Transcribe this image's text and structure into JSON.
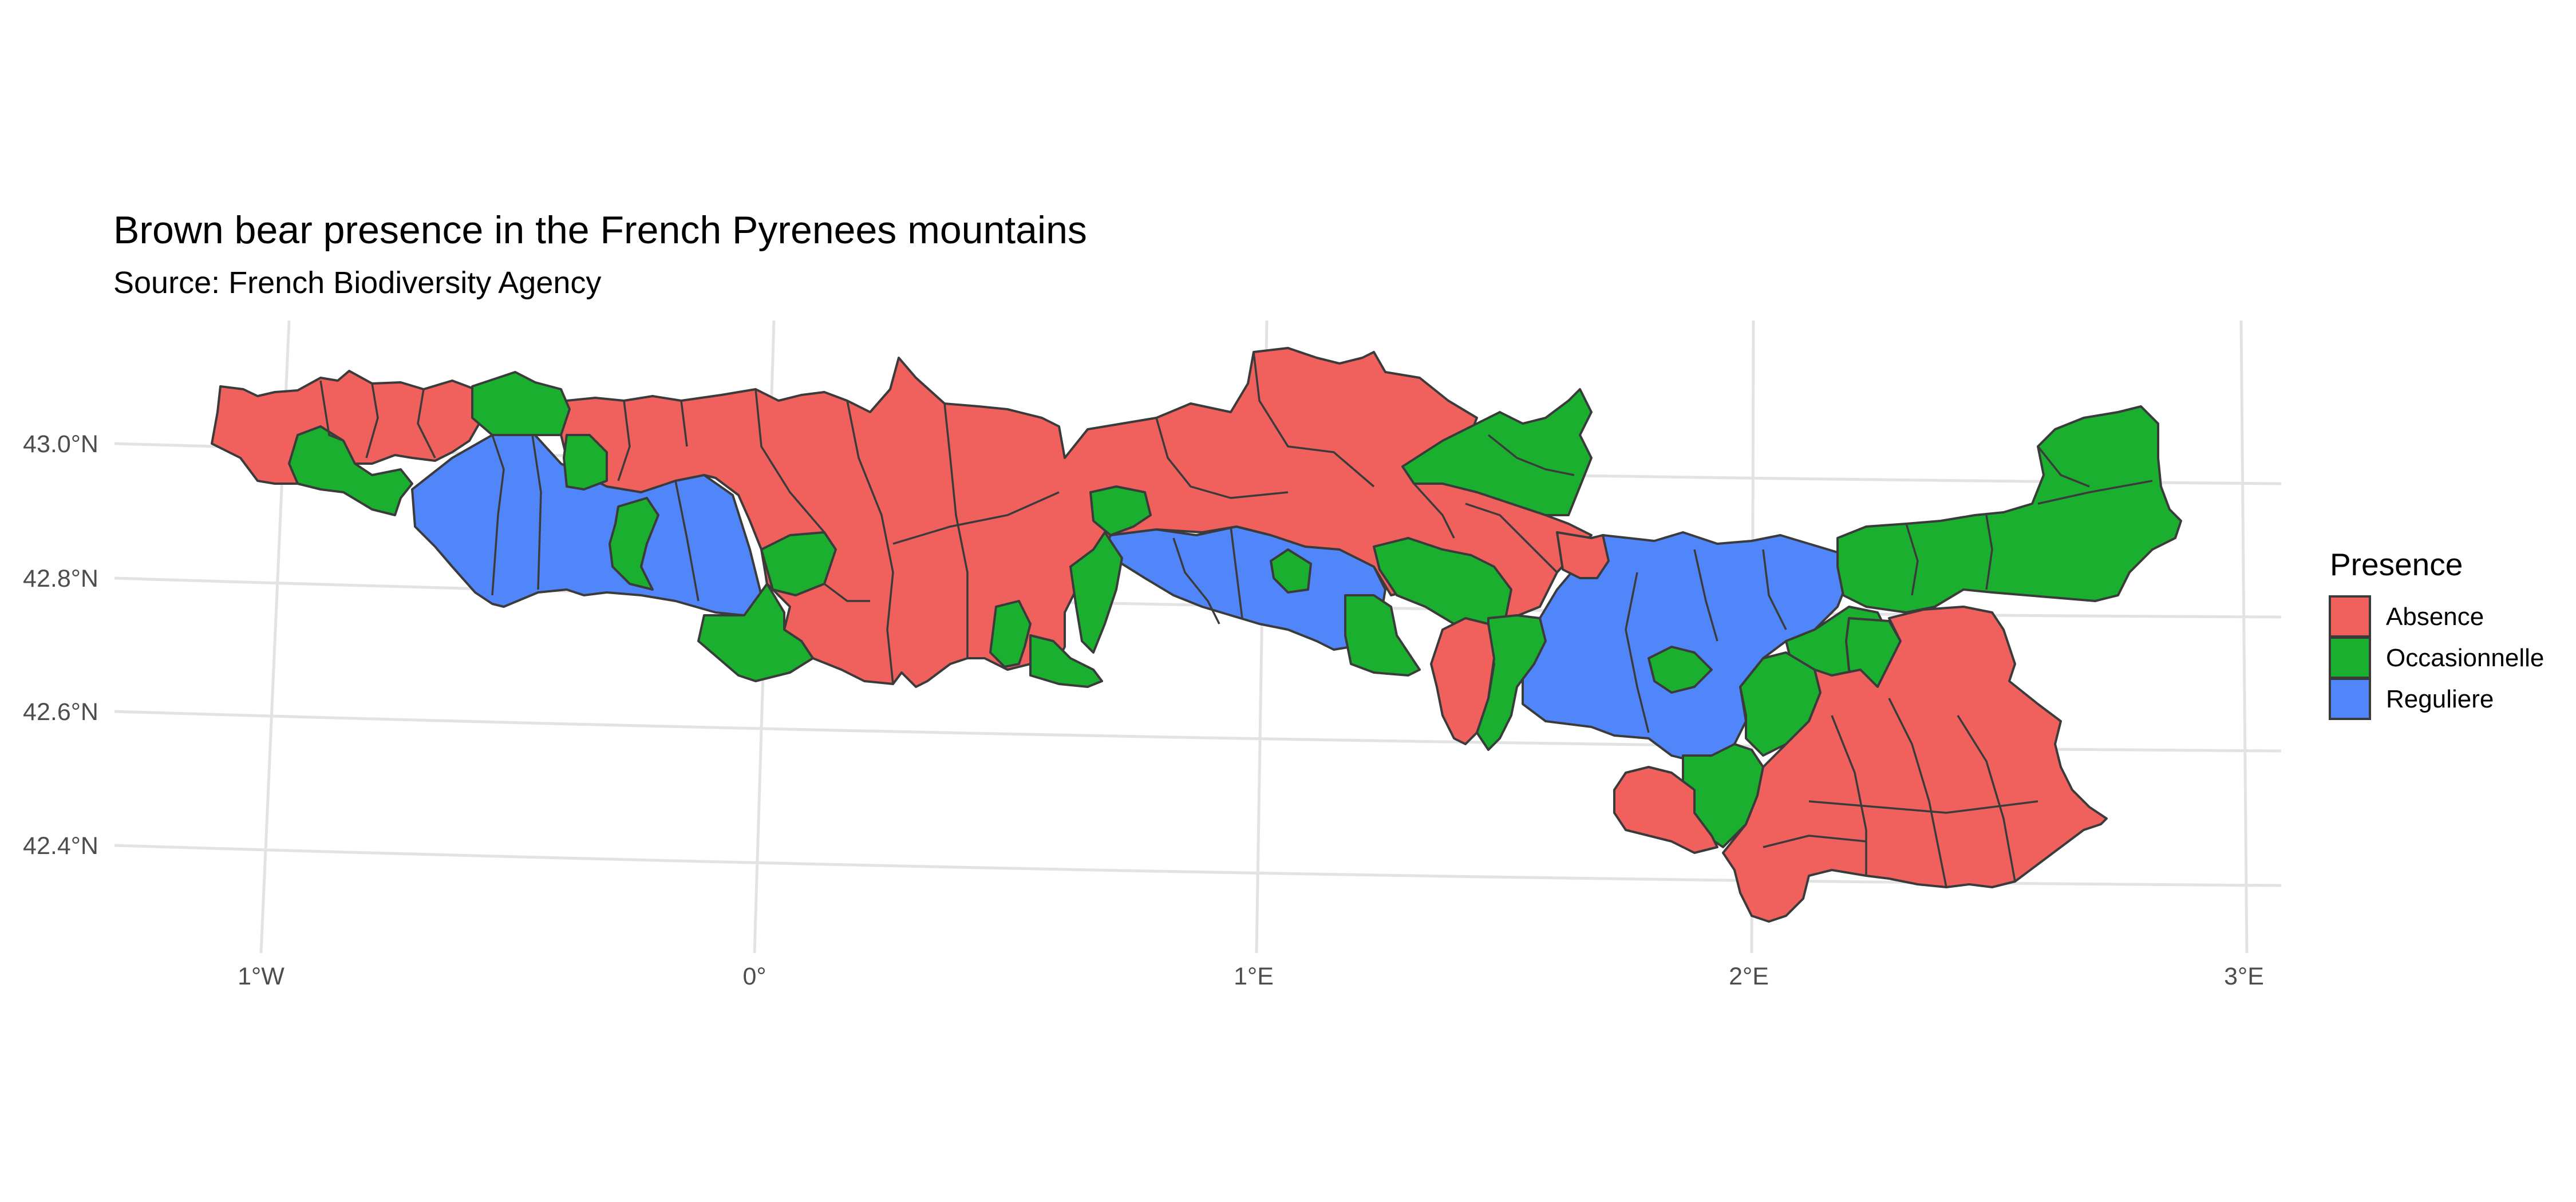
{
  "chart_data": {
    "type": "choropleth map",
    "title": "Brown bear presence in the French Pyrenees mountains",
    "subtitle": "Source: French Biodiversity Agency",
    "x_ticks": [
      "1°W",
      "0°",
      "1°E",
      "2°E",
      "3°E"
    ],
    "y_ticks": [
      "43.0°N",
      "42.8°N",
      "42.6°N",
      "42.4°N"
    ],
    "grid": true,
    "legend": {
      "title": "Presence",
      "placement": "right",
      "items": [
        {
          "label": "Absence",
          "color": "#F0605D"
        },
        {
          "label": "Occasionnelle",
          "color": "#1AAF2E"
        },
        {
          "label": "Reguliere",
          "color": "#5186FB"
        }
      ]
    }
  },
  "colors": {
    "absence": "#F0605D",
    "occasionnelle": "#1AAF2E",
    "reguliere": "#5186FB",
    "border": "#3B3B3B",
    "grid": "#E3E3E3"
  }
}
